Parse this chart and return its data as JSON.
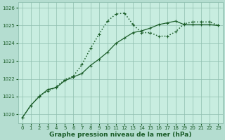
{
  "line1_x": [
    0,
    1,
    2,
    3,
    4,
    5,
    6,
    7,
    8,
    9,
    10,
    11,
    12,
    13,
    14,
    15,
    16,
    17,
    18,
    19,
    20,
    21,
    22,
    23
  ],
  "line1_y": [
    1019.8,
    1020.5,
    1021.0,
    1021.4,
    1021.5,
    1021.9,
    1022.1,
    1022.3,
    1022.75,
    1023.1,
    1023.5,
    1024.0,
    1024.3,
    1024.6,
    1024.7,
    1024.85,
    1025.05,
    1025.15,
    1025.25,
    1025.05,
    1025.05,
    1025.05,
    1025.05,
    1025.0
  ],
  "line2_x": [
    0,
    1,
    2,
    3,
    4,
    5,
    6,
    7,
    8,
    9,
    10,
    11,
    12,
    13,
    14,
    15,
    16,
    17,
    18,
    19,
    20,
    21,
    22,
    23
  ],
  "line2_y": [
    1019.8,
    1020.5,
    1021.05,
    1021.3,
    1021.55,
    1021.95,
    1022.15,
    1022.8,
    1023.7,
    1024.5,
    1025.25,
    1025.65,
    1025.7,
    1025.05,
    1024.6,
    1024.6,
    1024.4,
    1024.4,
    1024.65,
    1025.1,
    1025.2,
    1025.2,
    1025.2,
    1025.0
  ],
  "bg_color": "#b4ddd0",
  "plot_bg_color": "#c8ede0",
  "grid_color": "#8fbfaf",
  "line_color": "#1a5c28",
  "xlabel": "Graphe pression niveau de la mer (hPa)",
  "xlim": [
    -0.5,
    23.5
  ],
  "ylim": [
    1019.5,
    1026.3
  ],
  "yticks": [
    1020,
    1021,
    1022,
    1023,
    1024,
    1025,
    1026
  ],
  "xticks": [
    0,
    1,
    2,
    3,
    4,
    5,
    6,
    7,
    8,
    9,
    10,
    11,
    12,
    13,
    14,
    15,
    16,
    17,
    18,
    19,
    20,
    21,
    22,
    23
  ],
  "tick_fontsize": 5.0,
  "xlabel_fontsize": 6.5,
  "lw1": 0.9,
  "lw2": 1.1,
  "markersize": 2.8
}
